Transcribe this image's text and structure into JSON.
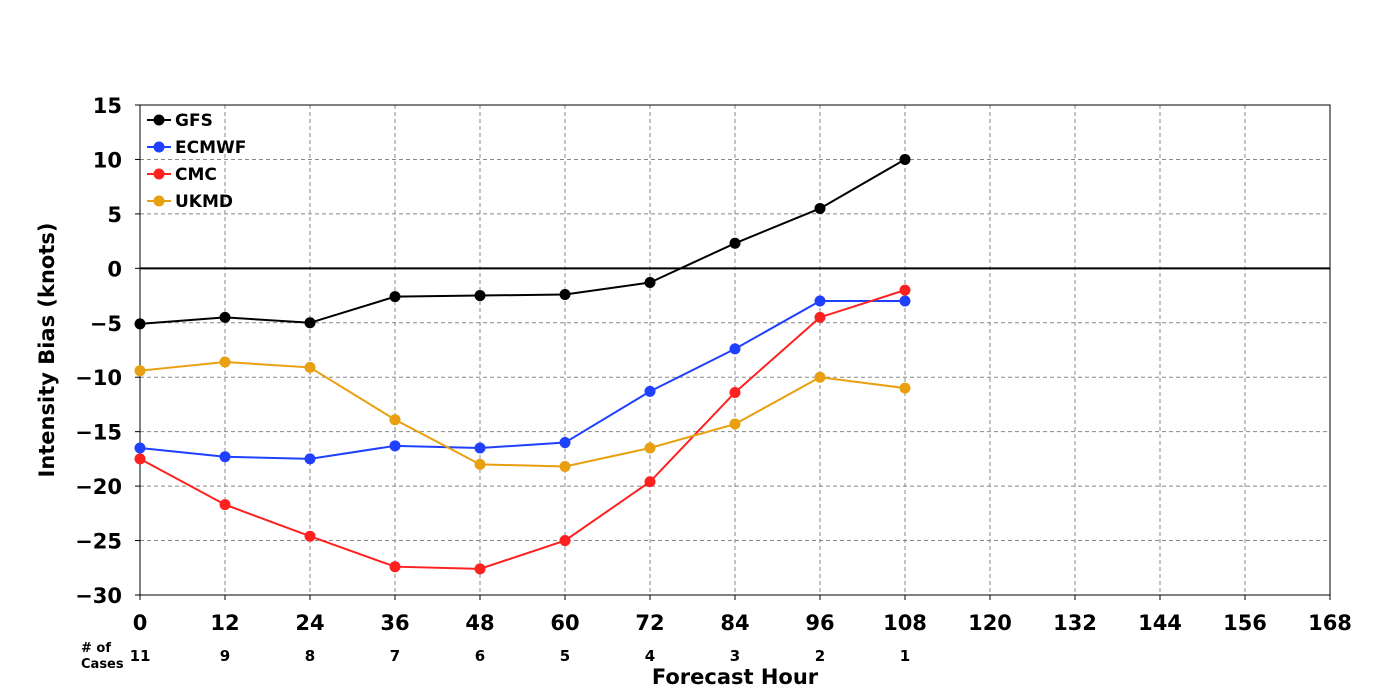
{
  "chart_data": {
    "type": "line",
    "xlabel": "Forecast Hour",
    "ylabel": "Intensity Bias (knots)",
    "xlim": [
      0,
      168
    ],
    "ylim": [
      -30,
      15
    ],
    "xticks": [
      0,
      12,
      24,
      36,
      48,
      60,
      72,
      84,
      96,
      108,
      120,
      132,
      144,
      156,
      168
    ],
    "yticks": [
      15,
      10,
      5,
      0,
      -5,
      -10,
      -15,
      -20,
      -25,
      -30
    ],
    "ytick_labels": [
      "15",
      "10",
      "5",
      "0",
      "−5",
      "−10",
      "−15",
      "−20",
      "−25",
      "−30"
    ],
    "grid": true,
    "legend_position": "top-left",
    "cases_label": [
      "# of",
      "Cases"
    ],
    "cases": [
      {
        "x": 0,
        "n": "11"
      },
      {
        "x": 12,
        "n": "9"
      },
      {
        "x": 24,
        "n": "8"
      },
      {
        "x": 36,
        "n": "7"
      },
      {
        "x": 48,
        "n": "6"
      },
      {
        "x": 60,
        "n": "5"
      },
      {
        "x": 72,
        "n": "4"
      },
      {
        "x": 84,
        "n": "3"
      },
      {
        "x": 96,
        "n": "2"
      },
      {
        "x": 108,
        "n": "1"
      }
    ],
    "x": [
      0,
      12,
      24,
      36,
      48,
      60,
      72,
      84,
      96,
      108
    ],
    "series": [
      {
        "name": "GFS",
        "color": "#000000",
        "values": [
          -5.1,
          -4.5,
          -5.0,
          -2.6,
          -2.5,
          -2.4,
          -1.3,
          2.3,
          5.5,
          10.0
        ]
      },
      {
        "name": "ECMWF",
        "color": "#2040ff",
        "values": [
          -16.5,
          -17.3,
          -17.5,
          -16.3,
          -16.5,
          -16.0,
          -11.3,
          -7.4,
          -3.0,
          -3.0
        ]
      },
      {
        "name": "CMC",
        "color": "#ff2020",
        "values": [
          -17.5,
          -21.7,
          -24.6,
          -27.4,
          -27.6,
          -25.0,
          -19.6,
          -11.4,
          -4.5,
          -2.0
        ]
      },
      {
        "name": "UKMD",
        "color": "#e8a010",
        "values": [
          -9.4,
          -8.6,
          -9.1,
          -13.9,
          -18.0,
          -18.2,
          -16.5,
          -14.3,
          -10.0,
          -11.0
        ]
      }
    ]
  }
}
